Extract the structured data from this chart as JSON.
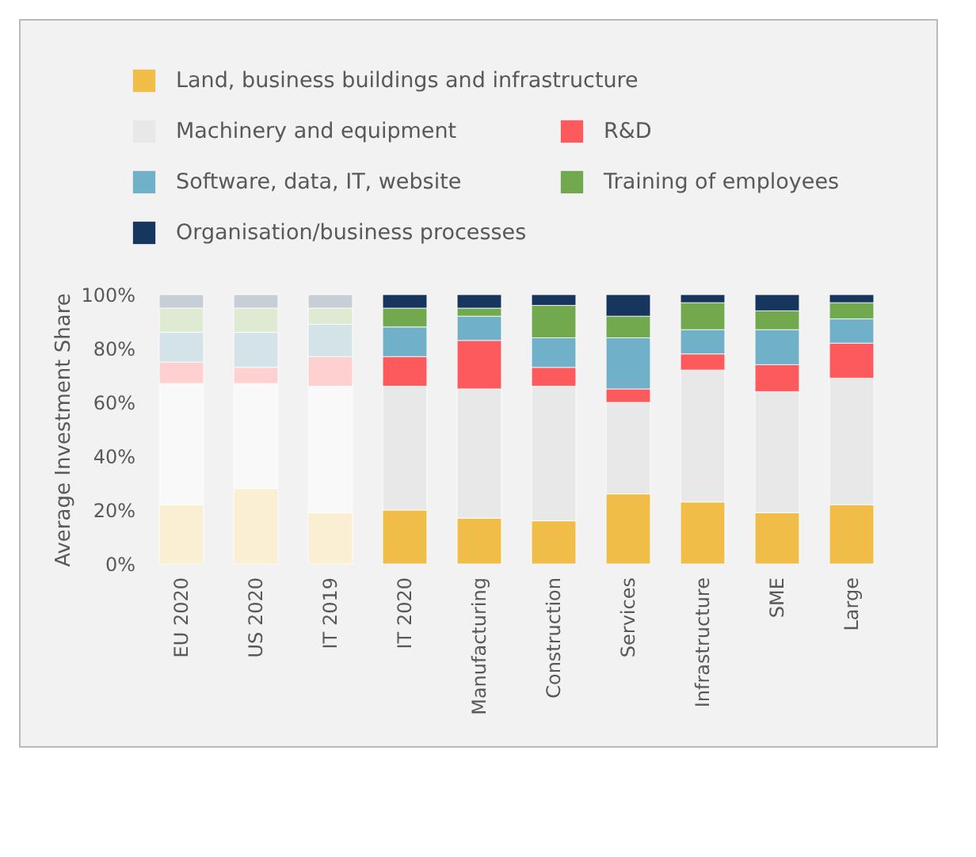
{
  "chart_data": {
    "type": "bar",
    "stacked": true,
    "legend": "top left",
    "grid": false,
    "ylabel": "Average Investment Share",
    "categories": [
      "EU 2020",
      "US 2020",
      "IT 2019",
      "IT 2020",
      "Manufacturing",
      "Construction",
      "Services",
      "Infrastructure",
      "SME",
      "Large"
    ],
    "ylim": [
      0,
      100
    ],
    "yticks": [
      {
        "value": 0,
        "label": "0%"
      },
      {
        "value": 20,
        "label": "20%"
      },
      {
        "value": 40,
        "label": "40%"
      },
      {
        "value": 60,
        "label": "60%"
      },
      {
        "value": 80,
        "label": "80%"
      },
      {
        "value": 100,
        "label": "100%"
      }
    ],
    "series": [
      {
        "name": "Land, business buildings and infrastructure",
        "color": "#f0be48",
        "colors": [
          "#faefd2",
          "#faefd2",
          "#faefd2",
          "#f0be48",
          "#f0be48",
          "#f0be48",
          "#f0be48",
          "#f0be48",
          "#f0be48",
          "#f0be48"
        ],
        "values": [
          22,
          28,
          19,
          20,
          17,
          16,
          26,
          23,
          19,
          22
        ]
      },
      {
        "name": "Machinery and equipment",
        "color": "#e8e8e8",
        "colors": [
          "#f9f9f9",
          "#f9f9f9",
          "#f9f9f9",
          "#e8e8e8",
          "#e8e8e8",
          "#e8e8e8",
          "#e8e8e8",
          "#e8e8e8",
          "#e8e8e8",
          "#e8e8e8"
        ],
        "values": [
          45,
          39,
          47,
          46,
          48,
          50,
          34,
          49,
          45,
          47
        ]
      },
      {
        "name": "R&D",
        "color": "#fd5a5d",
        "colors": [
          "#ffd0d0",
          "#ffd0d0",
          "#ffd0d0",
          "#fd5a5d",
          "#fd5a5d",
          "#fd5a5d",
          "#fd5a5d",
          "#fd5a5d",
          "#fd5a5d",
          "#fd5a5d"
        ],
        "values": [
          8,
          6,
          11,
          11,
          18,
          7,
          5,
          6,
          10,
          13
        ]
      },
      {
        "name": "Software, data, IT, website",
        "color": "#70b0c8",
        "colors": [
          "#d3e3e8",
          "#d3e3e8",
          "#d3e3e8",
          "#70b0c8",
          "#70b0c8",
          "#70b0c8",
          "#70b0c8",
          "#70b0c8",
          "#70b0c8",
          "#70b0c8"
        ],
        "values": [
          11,
          13,
          12,
          11,
          9,
          11,
          19,
          9,
          13,
          9
        ]
      },
      {
        "name": "Training of employees",
        "color": "#72a84e",
        "colors": [
          "#dfead2",
          "#dfead2",
          "#dfead2",
          "#72a84e",
          "#72a84e",
          "#72a84e",
          "#72a84e",
          "#72a84e",
          "#72a84e",
          "#72a84e"
        ],
        "values": [
          9,
          9,
          6,
          7,
          3,
          12,
          8,
          10,
          7,
          6
        ]
      },
      {
        "name": "Organisation/business processes",
        "color": "#17365e",
        "colors": [
          "#c8ced6",
          "#c8ced6",
          "#c8ced6",
          "#17365e",
          "#17365e",
          "#17365e",
          "#17365e",
          "#17365e",
          "#17365e",
          "#17365e"
        ],
        "values": [
          5,
          5,
          5,
          5,
          5,
          4,
          8,
          3,
          6,
          3
        ]
      }
    ]
  }
}
